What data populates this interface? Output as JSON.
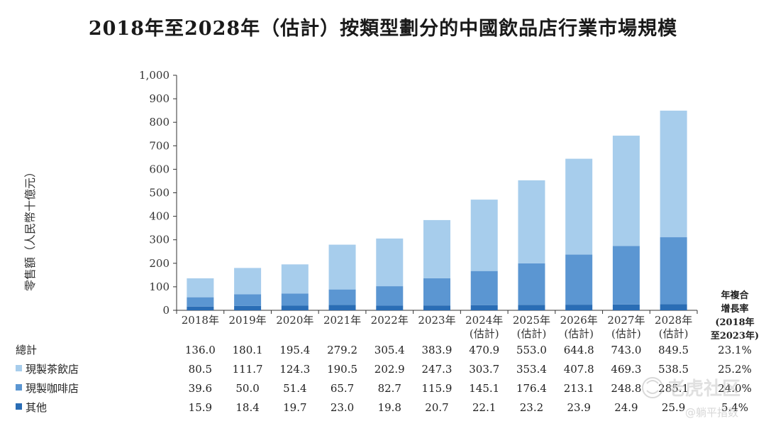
{
  "title": "2018年至2028年（估計）按類型劃分的中國飲品店行業市場規模",
  "watermark": {
    "brand": "老虎社区",
    "author": "@躺平指数"
  },
  "chart_data": {
    "type": "bar",
    "stacked": true,
    "ylabel": "零售額（人民幣十億元）",
    "ylim": [
      0,
      1000
    ],
    "yticks": [
      "0",
      "100",
      "200",
      "300",
      "400",
      "500",
      "600",
      "700",
      "800",
      "900",
      "1,000"
    ],
    "categories": [
      [
        "2018年"
      ],
      [
        "2019年"
      ],
      [
        "2020年"
      ],
      [
        "2021年"
      ],
      [
        "2022年"
      ],
      [
        "2023年"
      ],
      [
        "2024年",
        "(估計)"
      ],
      [
        "2025年",
        "(估計)"
      ],
      [
        "2026年",
        "(估計)"
      ],
      [
        "2027年",
        "(估計)"
      ],
      [
        "2028年",
        "(估計)"
      ]
    ],
    "series": [
      {
        "name": "其他",
        "color": "#2a6db5",
        "values": [
          15.9,
          18.4,
          19.7,
          23.0,
          19.8,
          20.7,
          22.1,
          23.2,
          23.9,
          24.9,
          25.9
        ]
      },
      {
        "name": "現製咖啡店",
        "color": "#5b96d2",
        "values": [
          39.6,
          50.0,
          51.4,
          65.7,
          82.7,
          115.9,
          145.1,
          176.4,
          213.1,
          248.8,
          285.1
        ]
      },
      {
        "name": "現製茶飲店",
        "color": "#a7cdec",
        "values": [
          80.5,
          111.7,
          124.3,
          190.5,
          202.9,
          247.3,
          303.7,
          353.4,
          407.8,
          469.3,
          538.5
        ]
      }
    ],
    "totals_label": "總計",
    "totals": [
      136.0,
      180.1,
      195.4,
      279.2,
      305.4,
      383.9,
      470.9,
      553.0,
      644.8,
      743.0,
      849.5
    ],
    "cagr_header": [
      "年複合",
      "增長率",
      "(2018年",
      "至2023年)"
    ],
    "cagr": {
      "total": "23.1%",
      "tea": "25.2%",
      "coffee": "24.0%",
      "other": "5.4%"
    },
    "grid": false,
    "legend": "table-left"
  }
}
